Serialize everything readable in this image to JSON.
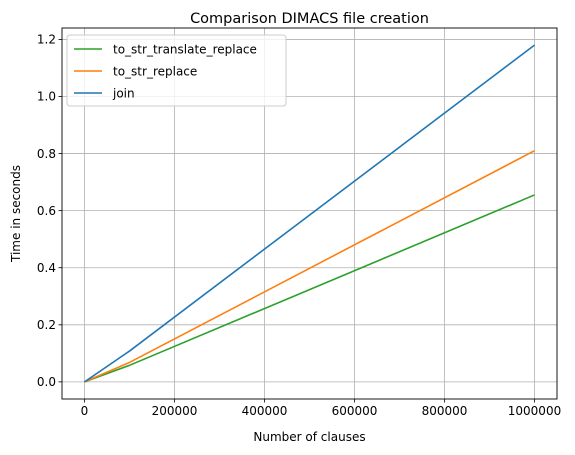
{
  "chart_data": {
    "type": "line",
    "title": "Comparison DIMACS file creation",
    "xlabel": "Number of clauses",
    "ylabel": "Time in seconds",
    "xlim": [
      -50000,
      1050000
    ],
    "ylim": [
      -0.06,
      1.24
    ],
    "xticks": [
      0,
      200000,
      400000,
      600000,
      800000,
      1000000
    ],
    "yticks": [
      0.0,
      0.2,
      0.4,
      0.6,
      0.8,
      1.0,
      1.2
    ],
    "xtick_labels": [
      "0",
      "200000",
      "400000",
      "600000",
      "800000",
      "1000000"
    ],
    "ytick_labels": [
      "0.0",
      "0.2",
      "0.4",
      "0.6",
      "0.8",
      "1.0",
      "1.2"
    ],
    "grid": true,
    "legend_position": "top-left",
    "x": [
      0,
      100000,
      1000000
    ],
    "series": [
      {
        "name": "to_str_translate_replace",
        "color": "#2ca02c",
        "values": [
          0.0,
          0.058,
          0.655
        ]
      },
      {
        "name": "to_str_replace",
        "color": "#ff7f0e",
        "values": [
          0.0,
          0.068,
          0.81
        ]
      },
      {
        "name": "join",
        "color": "#1f77b4",
        "values": [
          0.0,
          0.108,
          1.18
        ]
      }
    ]
  }
}
